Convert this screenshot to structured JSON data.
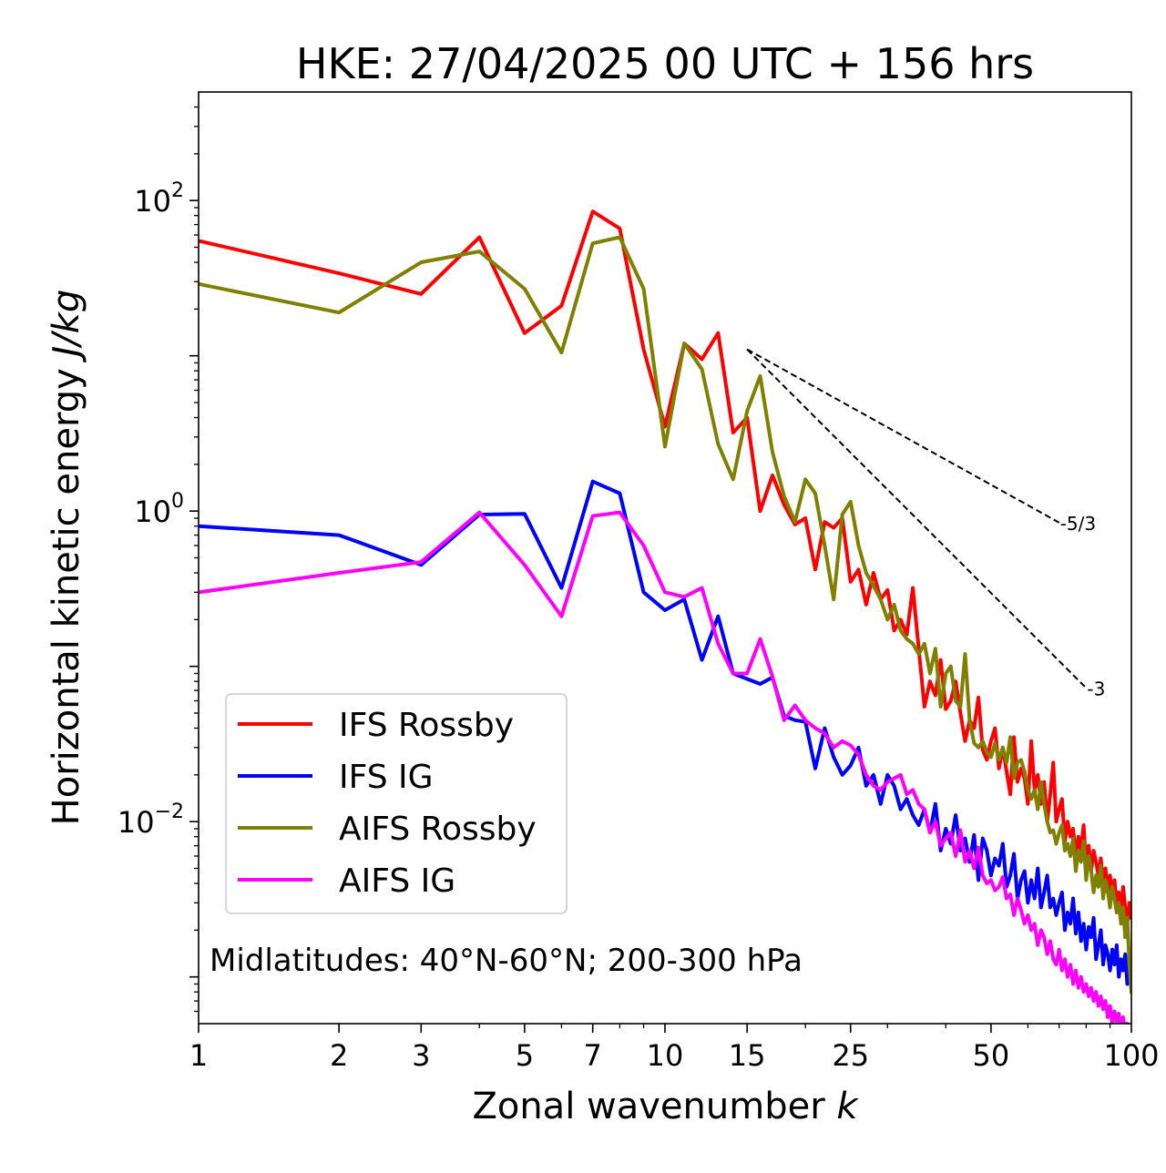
{
  "chart_data": {
    "type": "line",
    "title": "HKE: 27/04/2025 00 UTC + 156 hrs",
    "xlabel": "Zonal wavenumber",
    "xlabel_var": "k",
    "ylabel": "Horizontal kinetic energy",
    "ylabel_unit": "J/kg",
    "xscale": "log",
    "yscale": "log",
    "xlim": [
      1,
      100
    ],
    "ylim": [
      0.0005,
      500
    ],
    "xticks": [
      1,
      2,
      3,
      5,
      7,
      10,
      15,
      25,
      50,
      100
    ],
    "xtick_labels": [
      "1",
      "2",
      "3",
      "5",
      "7",
      "10",
      "15",
      "25",
      "50",
      "100"
    ],
    "yticks": [
      {
        "value": 100,
        "base": "10",
        "exp": "2"
      },
      {
        "value": 1,
        "base": "10",
        "exp": "0"
      },
      {
        "value": 0.01,
        "base": "10",
        "exp": "−2"
      }
    ],
    "grid": false,
    "legend_position": "lower-left",
    "annotation": "Midlatitudes: 40°N-60°N; 200-300 hPa",
    "series": [
      {
        "name": "IFS Rossby",
        "color": "#ff0000",
        "x": [
          1,
          2,
          3,
          4,
          5,
          6,
          7,
          8,
          9,
          10,
          11,
          12,
          13,
          14,
          15,
          16,
          17,
          18,
          19,
          20,
          21,
          22,
          23,
          24,
          25,
          26,
          27,
          28,
          29,
          30,
          31,
          32,
          33,
          34,
          35,
          36,
          37,
          38,
          39,
          40,
          41,
          42,
          43,
          44,
          45,
          46,
          47,
          48,
          49,
          50,
          51,
          52,
          53,
          54,
          55,
          56,
          57,
          58,
          59,
          60,
          61,
          62,
          63,
          64,
          65,
          66,
          67,
          68,
          69,
          70,
          71,
          72,
          73,
          74,
          75,
          76,
          77,
          78,
          79,
          80,
          81,
          82,
          83,
          84,
          85,
          86,
          87,
          88,
          89,
          90,
          91,
          92,
          93,
          94,
          95,
          96,
          97,
          98,
          99,
          100
        ],
        "y": [
          55,
          34,
          25,
          58,
          14,
          21,
          85,
          66,
          11,
          3.5,
          12,
          9.5,
          14,
          3.2,
          4,
          1.0,
          1.7,
          1.1,
          0.82,
          0.9,
          0.42,
          0.85,
          0.78,
          0.9,
          0.35,
          0.42,
          0.25,
          0.4,
          0.27,
          0.31,
          0.17,
          0.2,
          0.16,
          0.32,
          0.13,
          0.055,
          0.08,
          0.065,
          0.11,
          0.053,
          0.06,
          0.08,
          0.05,
          0.033,
          0.045,
          0.04,
          0.063,
          0.029,
          0.025,
          0.033,
          0.04,
          0.022,
          0.03,
          0.021,
          0.015,
          0.035,
          0.018,
          0.022,
          0.019,
          0.013,
          0.033,
          0.016,
          0.02,
          0.013,
          0.018,
          0.01,
          0.015,
          0.024,
          0.01,
          0.012,
          0.014,
          0.0075,
          0.01,
          0.008,
          0.009,
          0.006,
          0.008,
          0.0065,
          0.0095,
          0.005,
          0.007,
          0.0048,
          0.0065,
          0.0055,
          0.0045,
          0.0058,
          0.004,
          0.005,
          0.0035,
          0.0045,
          0.0033,
          0.0042,
          0.003,
          0.0035,
          0.0025,
          0.0038,
          0.0028,
          0.0022,
          0.003,
          0.0024
        ]
      },
      {
        "name": "IFS IG",
        "color": "#0000ff",
        "x": [
          1,
          2,
          3,
          4,
          5,
          6,
          7,
          8,
          9,
          10,
          11,
          12,
          13,
          14,
          15,
          16,
          17,
          18,
          19,
          20,
          21,
          22,
          23,
          24,
          25,
          26,
          27,
          28,
          29,
          30,
          31,
          32,
          33,
          34,
          35,
          36,
          37,
          38,
          39,
          40,
          41,
          42,
          43,
          44,
          45,
          46,
          47,
          48,
          49,
          50,
          51,
          52,
          53,
          54,
          55,
          56,
          57,
          58,
          59,
          60,
          61,
          62,
          63,
          64,
          65,
          66,
          67,
          68,
          69,
          70,
          71,
          72,
          73,
          74,
          75,
          76,
          77,
          78,
          79,
          80,
          81,
          82,
          83,
          84,
          85,
          86,
          87,
          88,
          89,
          90,
          91,
          92,
          93,
          94,
          95,
          96,
          97,
          98,
          99,
          100
        ],
        "y": [
          0.8,
          0.7,
          0.45,
          0.95,
          0.96,
          0.32,
          1.55,
          1.3,
          0.3,
          0.23,
          0.27,
          0.11,
          0.21,
          0.09,
          0.083,
          0.077,
          0.085,
          0.048,
          0.045,
          0.044,
          0.022,
          0.04,
          0.026,
          0.02,
          0.023,
          0.03,
          0.017,
          0.02,
          0.013,
          0.02,
          0.017,
          0.012,
          0.014,
          0.011,
          0.0095,
          0.012,
          0.0085,
          0.013,
          0.0065,
          0.009,
          0.0072,
          0.011,
          0.0065,
          0.0078,
          0.0055,
          0.0082,
          0.0042,
          0.0078,
          0.0065,
          0.0045,
          0.0058,
          0.0052,
          0.0072,
          0.0038,
          0.0045,
          0.0062,
          0.0032,
          0.0042,
          0.0048,
          0.003,
          0.0042,
          0.0032,
          0.005,
          0.0028,
          0.0035,
          0.0045,
          0.0028,
          0.0032,
          0.0025,
          0.003,
          0.0035,
          0.002,
          0.0026,
          0.0022,
          0.0032,
          0.0019,
          0.0026,
          0.0017,
          0.0022,
          0.0015,
          0.0021,
          0.0018,
          0.0024,
          0.0013,
          0.0016,
          0.002,
          0.0012,
          0.0016,
          0.0014,
          0.0011,
          0.0015,
          0.0012,
          0.0016,
          0.001,
          0.0013,
          0.0011,
          0.0014,
          0.0009,
          0.0012,
          0.00095
        ]
      },
      {
        "name": "AIFS Rossby",
        "color": "#808000",
        "x": [
          1,
          2,
          3,
          4,
          5,
          6,
          7,
          8,
          9,
          10,
          11,
          12,
          13,
          14,
          15,
          16,
          17,
          18,
          19,
          20,
          21,
          22,
          23,
          24,
          25,
          26,
          27,
          28,
          29,
          30,
          31,
          32,
          33,
          34,
          35,
          36,
          37,
          38,
          39,
          40,
          41,
          42,
          43,
          44,
          45,
          46,
          47,
          48,
          49,
          50,
          51,
          52,
          53,
          54,
          55,
          56,
          57,
          58,
          59,
          60,
          61,
          62,
          63,
          64,
          65,
          66,
          67,
          68,
          69,
          70,
          71,
          72,
          73,
          74,
          75,
          76,
          77,
          78,
          79,
          80,
          81,
          82,
          83,
          84,
          85,
          86,
          87,
          88,
          89,
          90,
          91,
          92,
          93,
          94,
          95,
          96,
          97,
          98,
          99,
          100
        ],
        "y": [
          29,
          19,
          40,
          47,
          27,
          10.5,
          53,
          58,
          27,
          2.6,
          12,
          8.2,
          2.7,
          1.6,
          4.4,
          7.4,
          2.4,
          1.25,
          0.85,
          1.6,
          1.3,
          0.6,
          0.27,
          0.95,
          1.15,
          0.6,
          0.4,
          0.33,
          0.27,
          0.2,
          0.25,
          0.17,
          0.15,
          0.14,
          0.12,
          0.14,
          0.09,
          0.13,
          0.055,
          0.09,
          0.1,
          0.06,
          0.055,
          0.12,
          0.045,
          0.032,
          0.03,
          0.033,
          0.028,
          0.026,
          0.032,
          0.025,
          0.03,
          0.024,
          0.035,
          0.019,
          0.024,
          0.025,
          0.021,
          0.016,
          0.014,
          0.016,
          0.012,
          0.018,
          0.013,
          0.01,
          0.0085,
          0.0088,
          0.0072,
          0.0085,
          0.0095,
          0.0065,
          0.0072,
          0.006,
          0.0078,
          0.0048,
          0.0065,
          0.0055,
          0.0075,
          0.0042,
          0.006,
          0.0048,
          0.0035,
          0.0045,
          0.0038,
          0.0052,
          0.0032,
          0.0042,
          0.0036,
          0.0028,
          0.0038,
          0.0032,
          0.0026,
          0.003,
          0.0022,
          0.0028,
          0.0018,
          0.0024,
          0.0012,
          0.0008
        ]
      },
      {
        "name": "AIFS IG",
        "color": "#ff00ff",
        "x": [
          1,
          2,
          3,
          4,
          5,
          6,
          7,
          8,
          9,
          10,
          11,
          12,
          13,
          14,
          15,
          16,
          17,
          18,
          19,
          20,
          21,
          22,
          23,
          24,
          25,
          26,
          27,
          28,
          29,
          30,
          31,
          32,
          33,
          34,
          35,
          36,
          37,
          38,
          39,
          40,
          41,
          42,
          43,
          44,
          45,
          46,
          47,
          48,
          49,
          50,
          51,
          52,
          53,
          54,
          55,
          56,
          57,
          58,
          59,
          60,
          61,
          62,
          63,
          64,
          65,
          66,
          67,
          68,
          69,
          70,
          71,
          72,
          73,
          74,
          75,
          76,
          77,
          78,
          79,
          80,
          81,
          82,
          83,
          84,
          85,
          86,
          87,
          88,
          89,
          90,
          91,
          92,
          93,
          94,
          95,
          96,
          97,
          98,
          99,
          100
        ],
        "y": [
          0.3,
          0.4,
          0.47,
          0.98,
          0.45,
          0.21,
          0.93,
          0.98,
          0.6,
          0.3,
          0.28,
          0.32,
          0.14,
          0.09,
          0.09,
          0.15,
          0.086,
          0.045,
          0.056,
          0.045,
          0.04,
          0.037,
          0.03,
          0.033,
          0.031,
          0.027,
          0.02,
          0.017,
          0.016,
          0.018,
          0.019,
          0.02,
          0.015,
          0.016,
          0.013,
          0.012,
          0.0085,
          0.01,
          0.007,
          0.0078,
          0.0085,
          0.006,
          0.0088,
          0.0055,
          0.0065,
          0.005,
          0.0068,
          0.0045,
          0.004,
          0.0042,
          0.0036,
          0.0038,
          0.0044,
          0.0032,
          0.0034,
          0.0025,
          0.0032,
          0.0027,
          0.0022,
          0.0025,
          0.002,
          0.0022,
          0.0016,
          0.002,
          0.0018,
          0.0014,
          0.0017,
          0.0013,
          0.0012,
          0.0015,
          0.0011,
          0.0013,
          0.001,
          0.0012,
          0.0009,
          0.0011,
          0.00085,
          0.001,
          0.0008,
          0.0009,
          0.00075,
          0.00085,
          0.0007,
          0.0008,
          0.00065,
          0.00075,
          0.00062,
          0.0007,
          0.00055,
          0.00065,
          0.0005,
          0.0006,
          0.00052,
          0.00058,
          0.00048,
          0.00055,
          0.00045,
          0.0005,
          0.00042,
          0.00045
        ]
      }
    ],
    "reference_lines": [
      {
        "label": "-5/3",
        "slope": -1.6667,
        "x": [
          15,
          70
        ],
        "y": [
          11,
          0.843
        ],
        "style": "dashed",
        "color": "#000000"
      },
      {
        "label": "-3",
        "slope": -3,
        "x": [
          15,
          80
        ],
        "y": [
          11,
          0.0725
        ],
        "style": "dashed",
        "color": "#000000"
      }
    ]
  }
}
